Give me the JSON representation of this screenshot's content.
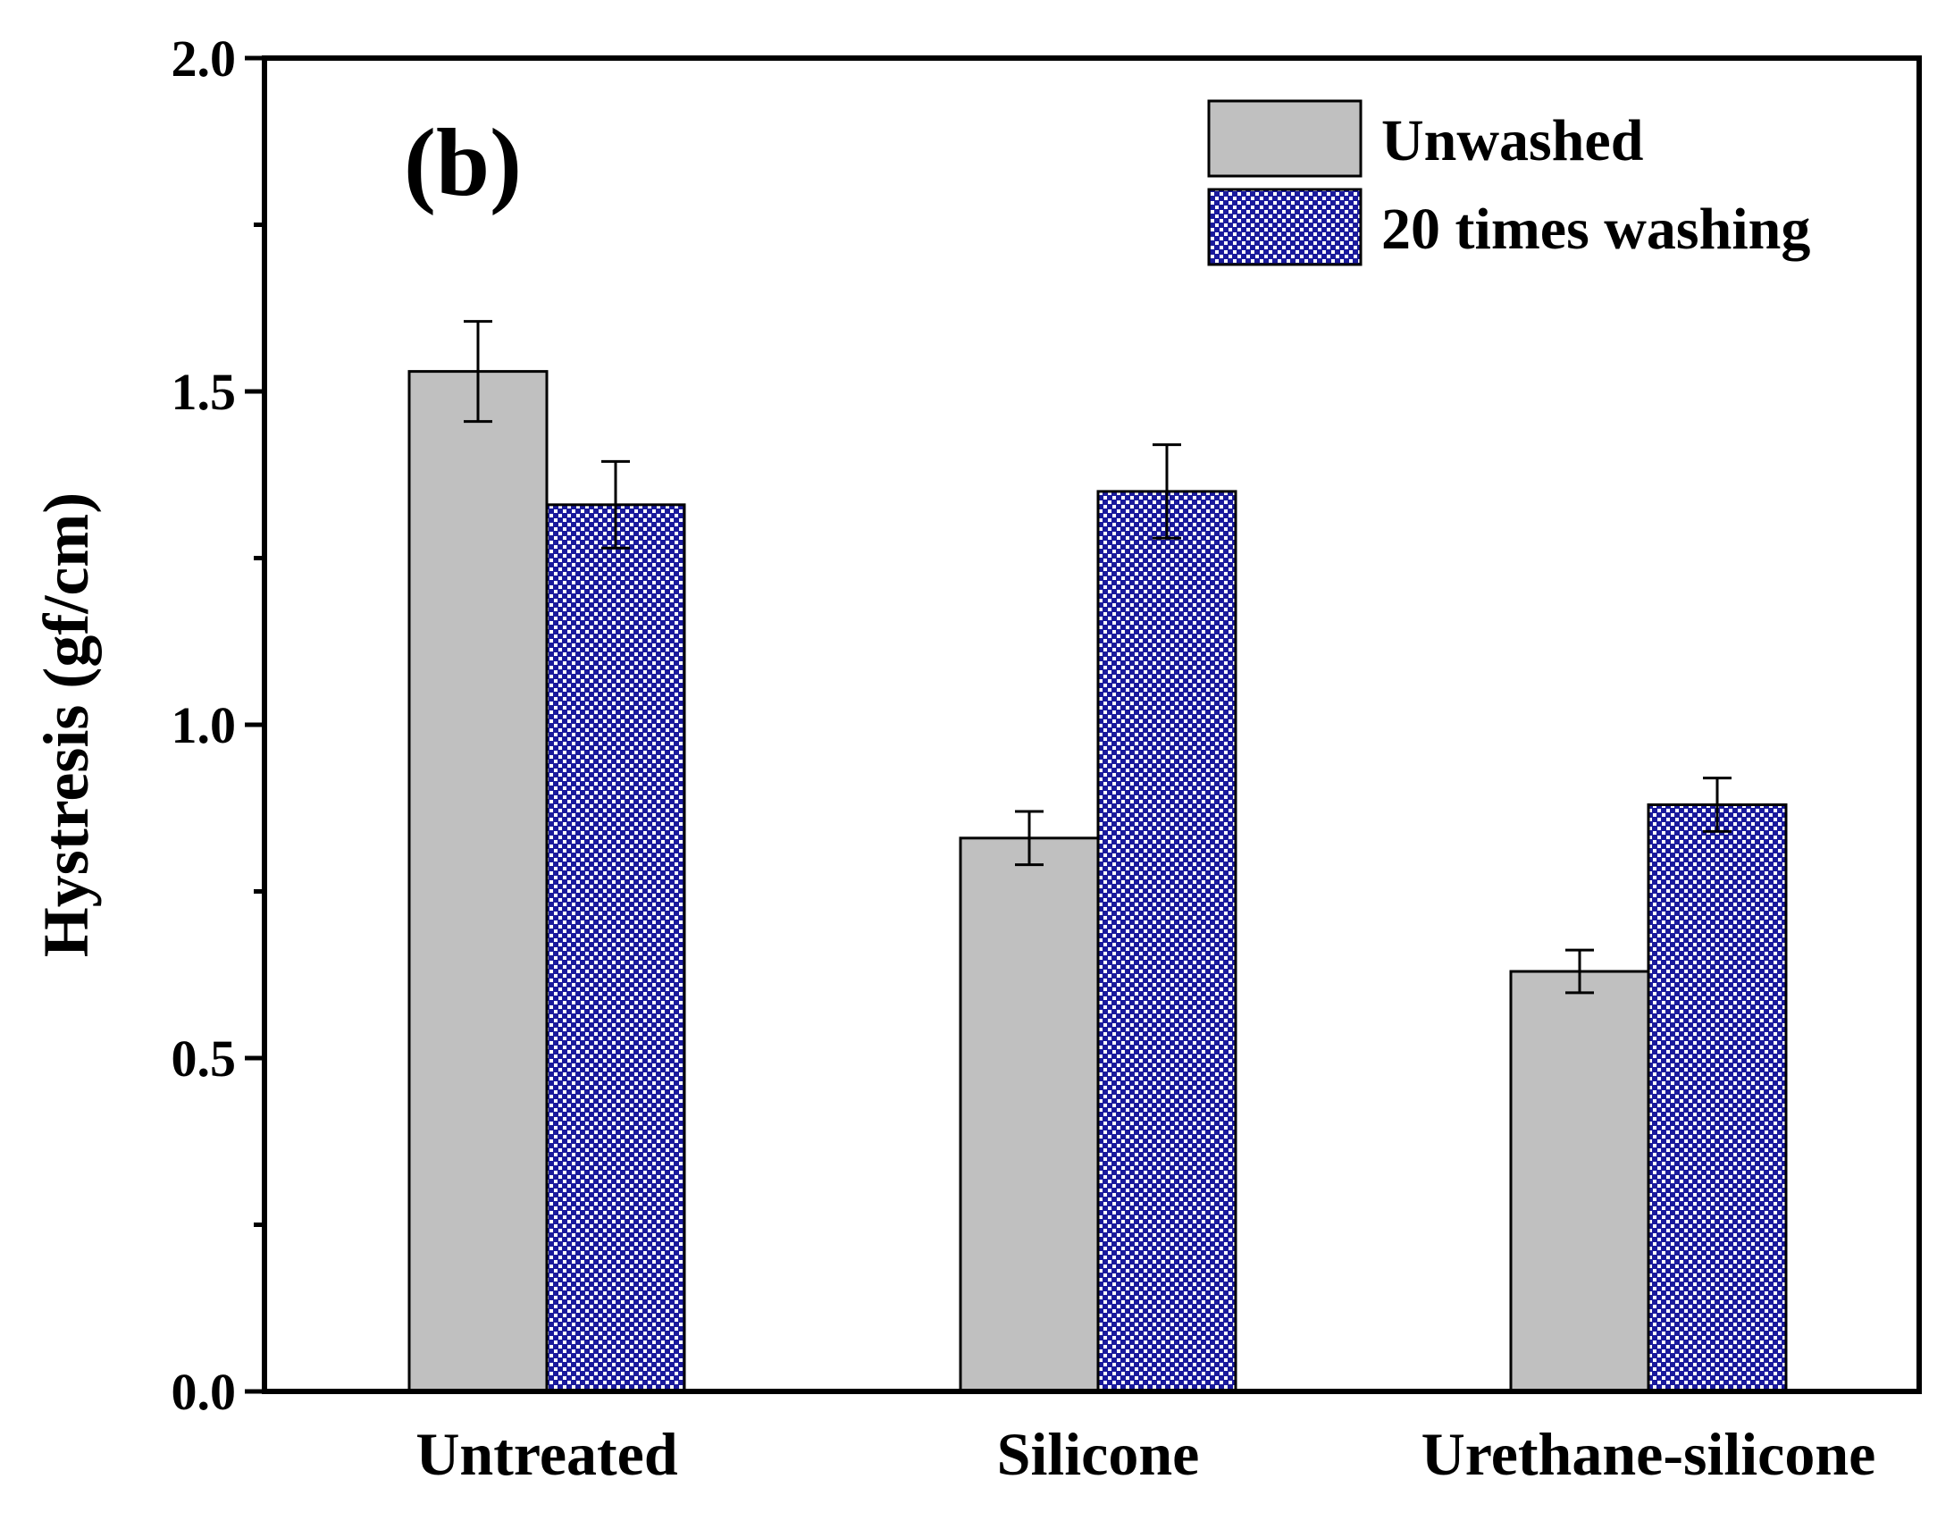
{
  "chart_data": {
    "type": "bar",
    "panel_label": "(b)",
    "title": "",
    "xlabel": "",
    "ylabel": "Hystresis (gf/cm)",
    "categories": [
      "Untreated",
      "Silicone",
      "Urethane-silicone"
    ],
    "ylim": [
      0.0,
      2.0
    ],
    "yticks": [
      "0.0",
      "0.5",
      "1.0",
      "1.5",
      "2.0"
    ],
    "yminor_step": 0.25,
    "grid": false,
    "legend_position": "top-right",
    "series": [
      {
        "name": "Unwashed",
        "values": [
          1.53,
          0.83,
          0.63
        ],
        "errors": [
          0.075,
          0.04,
          0.032
        ],
        "fill": "#c0c0c0",
        "pattern": "none"
      },
      {
        "name": "20 times washing",
        "values": [
          1.33,
          1.35,
          0.88
        ],
        "errors": [
          0.065,
          0.07,
          0.04
        ],
        "fill": "#1a1a9c",
        "pattern": "checker"
      }
    ]
  }
}
